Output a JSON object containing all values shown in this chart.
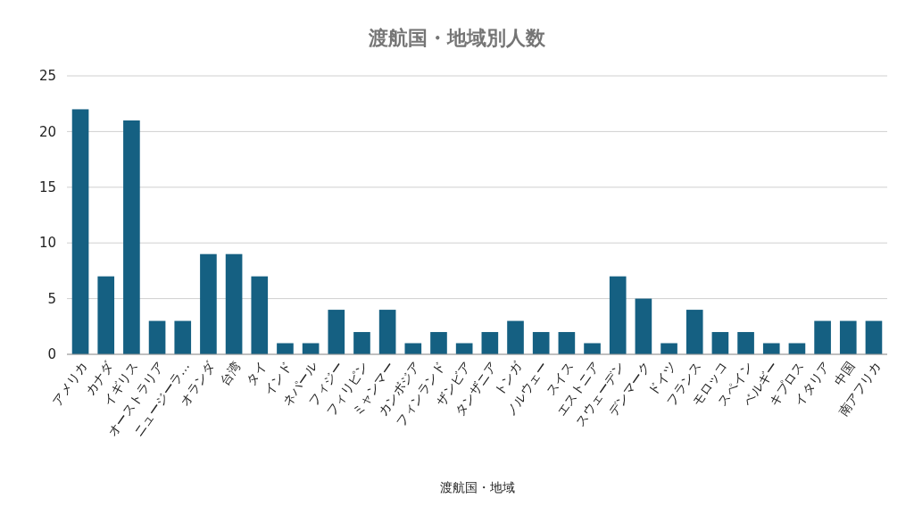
{
  "chart_data": {
    "type": "bar",
    "title": "渡航国・地域別人数",
    "xlabel": "渡航国・地域",
    "categories": [
      "アメリカ",
      "カナダ",
      "イギリス",
      "オーストラリア",
      "ニュージーラ…",
      "オランダ",
      "台湾",
      "タイ",
      "インド",
      "ネパール",
      "フィジー",
      "フィリピン",
      "ミャンマー",
      "カンボジア",
      "フィンランド",
      "ザンビア",
      "タンザニア",
      "トンガ",
      "ノルウェー",
      "スイス",
      "エストニア",
      "スウェーデン",
      "デンマーク",
      "ドイツ",
      "フランス",
      "モロッコ",
      "スペイン",
      "ベルギー",
      "キプロス",
      "イタリア",
      "中国",
      "南アフリカ"
    ],
    "values": [
      22,
      7,
      21,
      3,
      3,
      9,
      9,
      7,
      1,
      1,
      4,
      2,
      4,
      1,
      2,
      1,
      2,
      3,
      2,
      2,
      1,
      7,
      5,
      1,
      4,
      2,
      2,
      1,
      1,
      3,
      3,
      3
    ],
    "color": "#156082",
    "ylim": [
      0,
      25
    ],
    "yticks": [
      0,
      5,
      10,
      15,
      20,
      25
    ],
    "grid": "y"
  }
}
